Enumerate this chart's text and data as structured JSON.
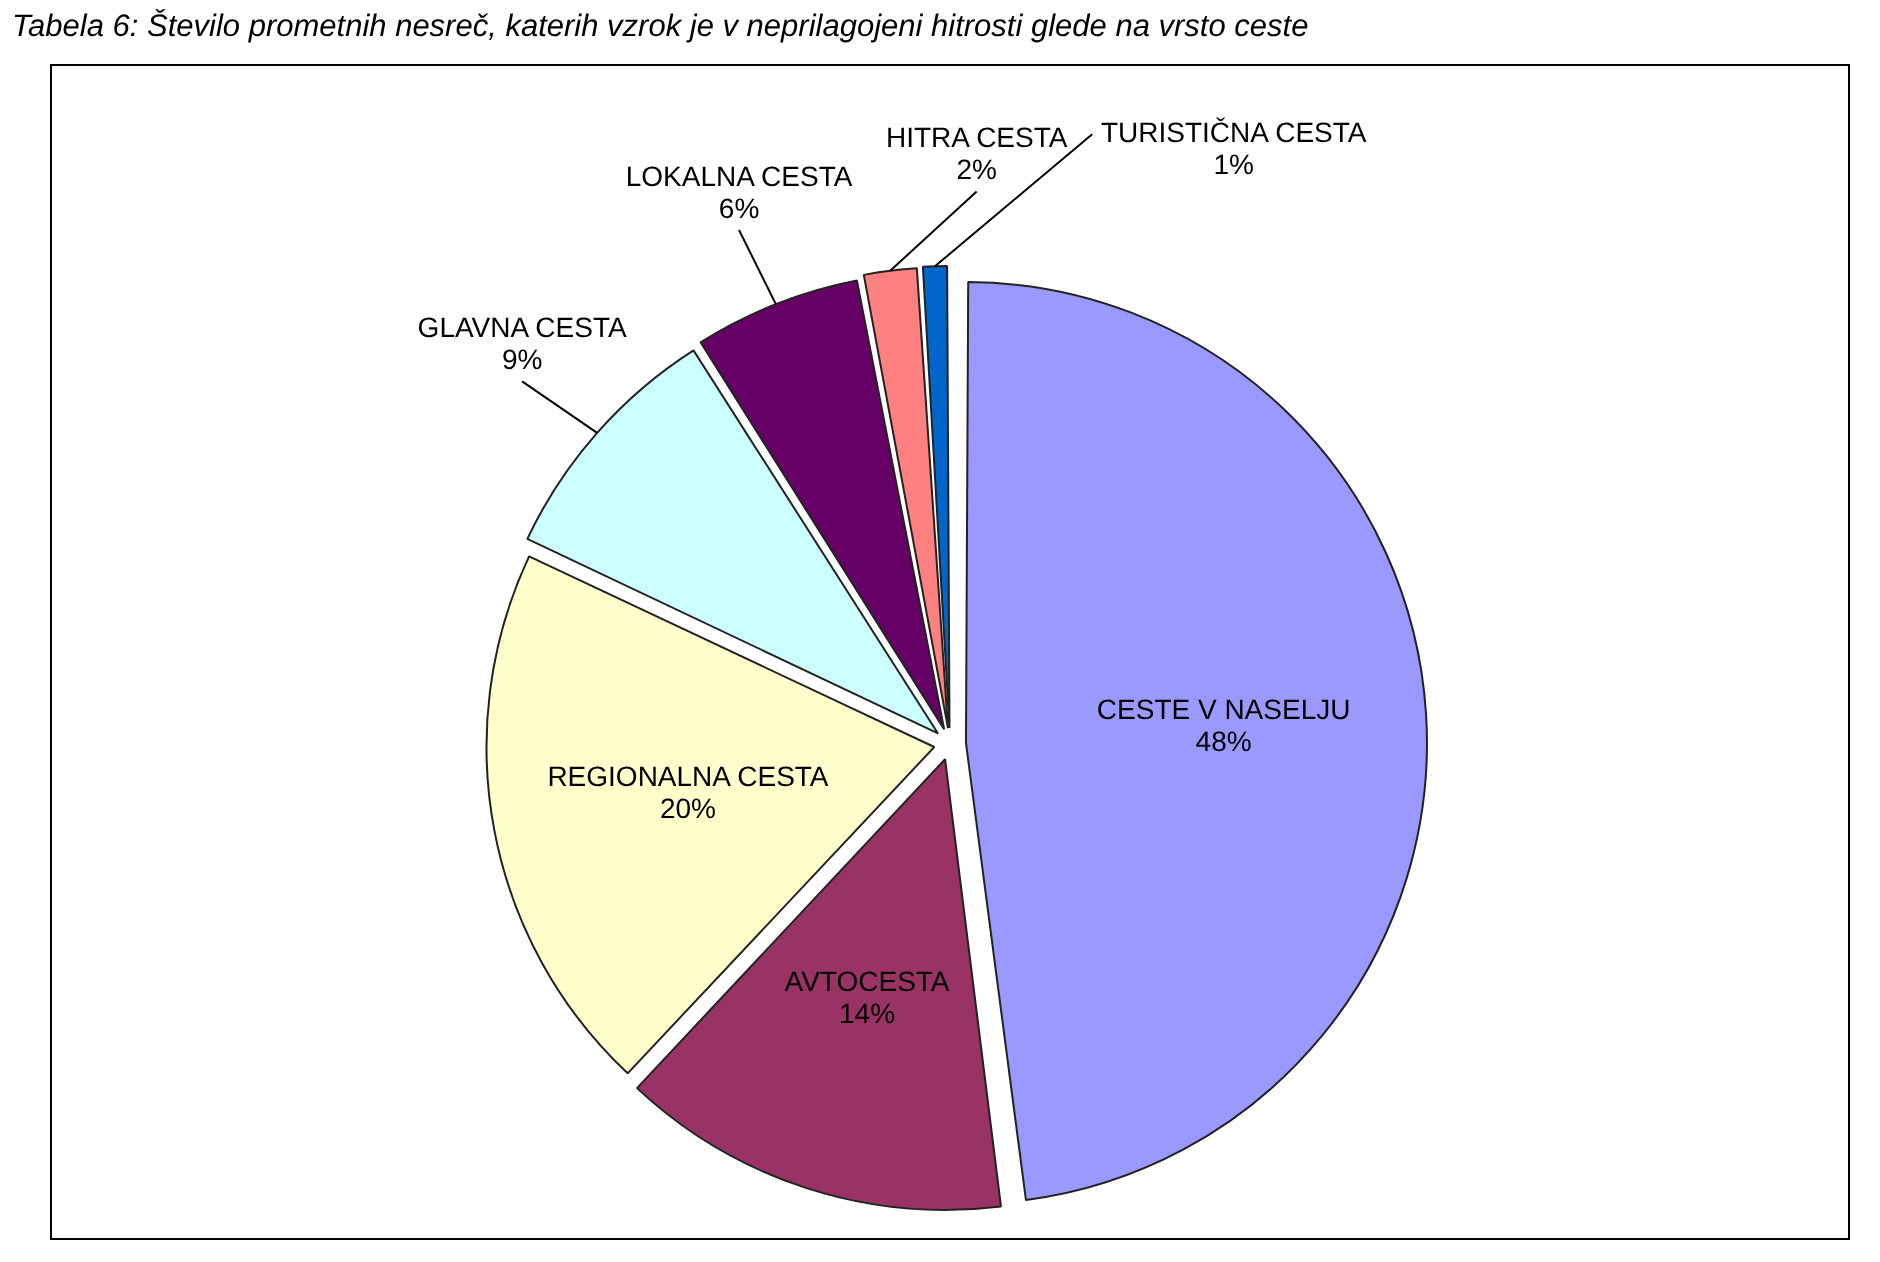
{
  "chart_data": {
    "type": "pie",
    "title": "Tabela 6: Število prometnih nesreč, katerih vzrok je v neprilagojeni hitrosti glede na vrsto ceste",
    "categories": [
      "CESTE V NASELJU",
      "AVTOCESTA",
      "REGIONALNA CESTA",
      "GLAVNA CESTA",
      "LOKALNA CESTA",
      "HITRA CESTA",
      "TURISTIČNA CESTA"
    ],
    "values": [
      48,
      14,
      20,
      9,
      6,
      2,
      1
    ],
    "colors": [
      "#9999ff",
      "#993366",
      "#ffffcc",
      "#ccffff",
      "#660066",
      "#ff8080",
      "#0066cc"
    ],
    "value_labels": [
      "48%",
      "14%",
      "20%",
      "9%",
      "6%",
      "2%",
      "1%"
    ]
  }
}
